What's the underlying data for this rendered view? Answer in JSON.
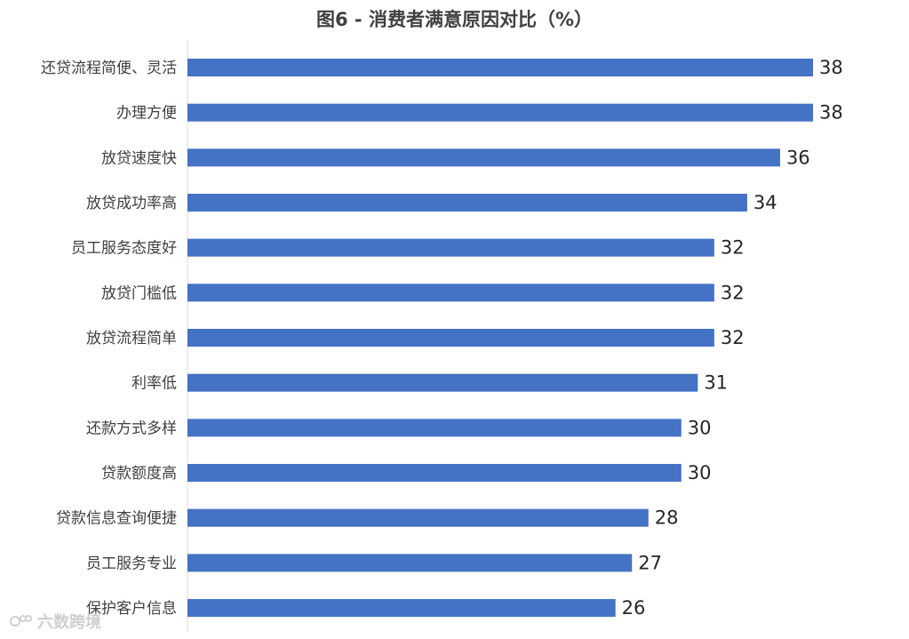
{
  "chart_data": {
    "type": "bar",
    "orientation": "horizontal",
    "title": "图6 - 消费者满意原因对比（%）",
    "categories": [
      "还贷流程简便、灵活",
      "办理方便",
      "放贷速度快",
      "放贷成功率高",
      "员工服务态度好",
      "放贷门槛低",
      "放贷流程简单",
      "利率低",
      "还款方式多样",
      "贷款额度高",
      "贷款信息查询便捷",
      "员工服务专业",
      "保护客户信息"
    ],
    "values": [
      38,
      38,
      36,
      34,
      32,
      32,
      32,
      31,
      30,
      30,
      28,
      27,
      26
    ],
    "xlim": [
      0,
      38
    ],
    "grid": false,
    "bar_color": "#4472C4"
  },
  "watermark": {
    "text": "六数跨境"
  }
}
